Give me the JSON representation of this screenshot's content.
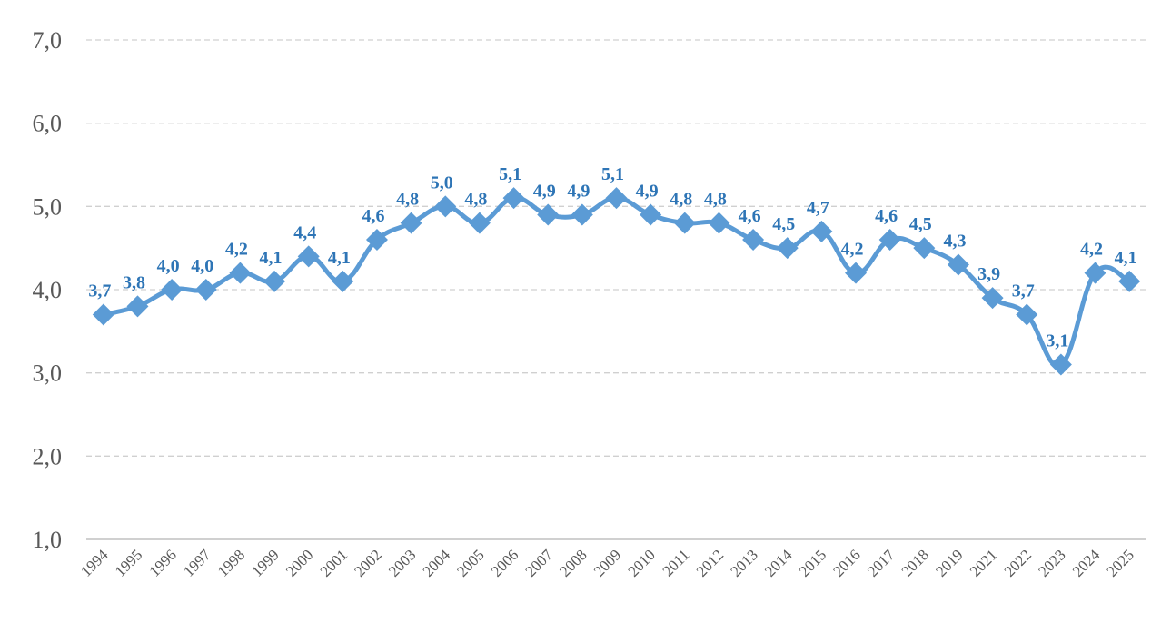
{
  "chart_data": {
    "type": "line",
    "title": "",
    "xlabel": "",
    "ylabel": "",
    "ylim": [
      1.0,
      7.0
    ],
    "yticks": [
      "1,0",
      "2,0",
      "3,0",
      "4,0",
      "5,0",
      "6,0",
      "7,0"
    ],
    "grid": "horizontal dashed",
    "smooth": true,
    "marker": "diamond",
    "categories": [
      "1994",
      "1995",
      "1996",
      "1997",
      "1998",
      "1999",
      "2000",
      "2001",
      "2002",
      "2003",
      "2004",
      "2005",
      "2006",
      "2007",
      "2008",
      "2009",
      "2010",
      "2011",
      "2012",
      "2013",
      "2014",
      "2015",
      "2016",
      "2017",
      "2018",
      "2019",
      "2021",
      "2022",
      "2023",
      "2024",
      "2025"
    ],
    "series": [
      {
        "values": [
          3.7,
          3.8,
          4.0,
          4.0,
          4.2,
          4.1,
          4.4,
          4.1,
          4.6,
          4.8,
          5.0,
          4.8,
          5.1,
          4.9,
          4.9,
          5.1,
          4.9,
          4.8,
          4.8,
          4.6,
          4.5,
          4.7,
          4.2,
          4.6,
          4.5,
          4.3,
          3.9,
          3.7,
          3.1,
          4.2,
          4.1
        ],
        "labels": [
          "3,7",
          "3,8",
          "4,0",
          "4,0",
          "4,2",
          "4,1",
          "4,4",
          "4,1",
          "4,6",
          "4,8",
          "5,0",
          "4,8",
          "5,1",
          "4,9",
          "4,9",
          "5,1",
          "4,9",
          "4,8",
          "4,8",
          "4,6",
          "4,5",
          "4,7",
          "4,2",
          "4,6",
          "4,5",
          "4,3",
          "3,9",
          "3,7",
          "3,1",
          "4,2",
          "4,1"
        ]
      }
    ],
    "colors": {
      "line": "#5B9BD5",
      "label": "#2E75B6",
      "grid": "#D0D0D0",
      "axis_text": "#595959"
    }
  }
}
